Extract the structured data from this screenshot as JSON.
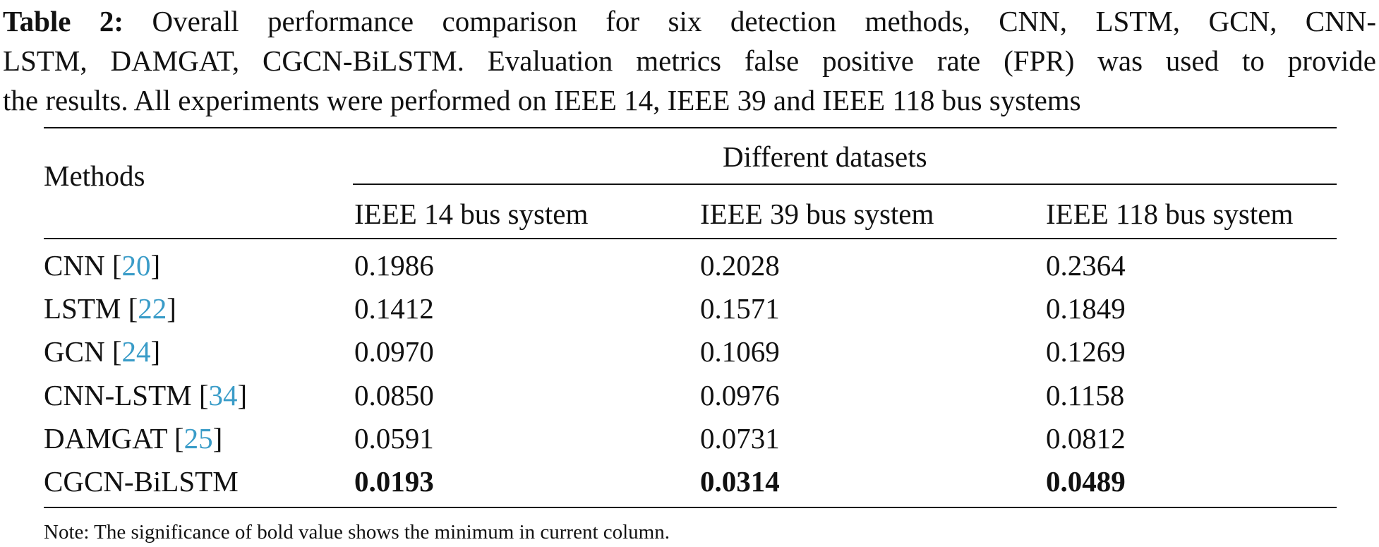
{
  "caption": {
    "lead": "Table 2:",
    "line1_rest": "Overall performance comparison for six detection methods, CNN, LSTM, GCN, CNN-",
    "line2": "LSTM, DAMGAT, CGCN-BiLSTM. Evaluation metrics false positive rate (FPR) was used to provide",
    "line3": "the results. All experiments were performed on IEEE 14, IEEE 39 and IEEE 118 bus systems"
  },
  "table": {
    "methods_header": "Methods",
    "group_header": "Different datasets",
    "columns": [
      "IEEE 14 bus system",
      "IEEE 39 bus system",
      "IEEE 118 bus system"
    ],
    "rows": [
      {
        "method": "CNN",
        "ref": "20",
        "values": [
          "0.1986",
          "0.2028",
          "0.2364"
        ]
      },
      {
        "method": "LSTM",
        "ref": "22",
        "values": [
          "0.1412",
          "0.1571",
          "0.1849"
        ]
      },
      {
        "method": "GCN",
        "ref": "24",
        "values": [
          "0.0970",
          "0.1069",
          "0.1269"
        ]
      },
      {
        "method": "CNN-LSTM",
        "ref": "34",
        "values": [
          "0.0850",
          "0.0976",
          "0.1158"
        ]
      },
      {
        "method": "DAMGAT",
        "ref": "25",
        "values": [
          "0.0591",
          "0.0731",
          "0.0812"
        ]
      },
      {
        "method": "CGCN-BiLSTM",
        "ref": "",
        "values": [
          "0.0193",
          "0.0314",
          "0.0489"
        ],
        "bold": true
      }
    ]
  },
  "note": "Note: The significance of bold value shows the minimum in current column."
}
